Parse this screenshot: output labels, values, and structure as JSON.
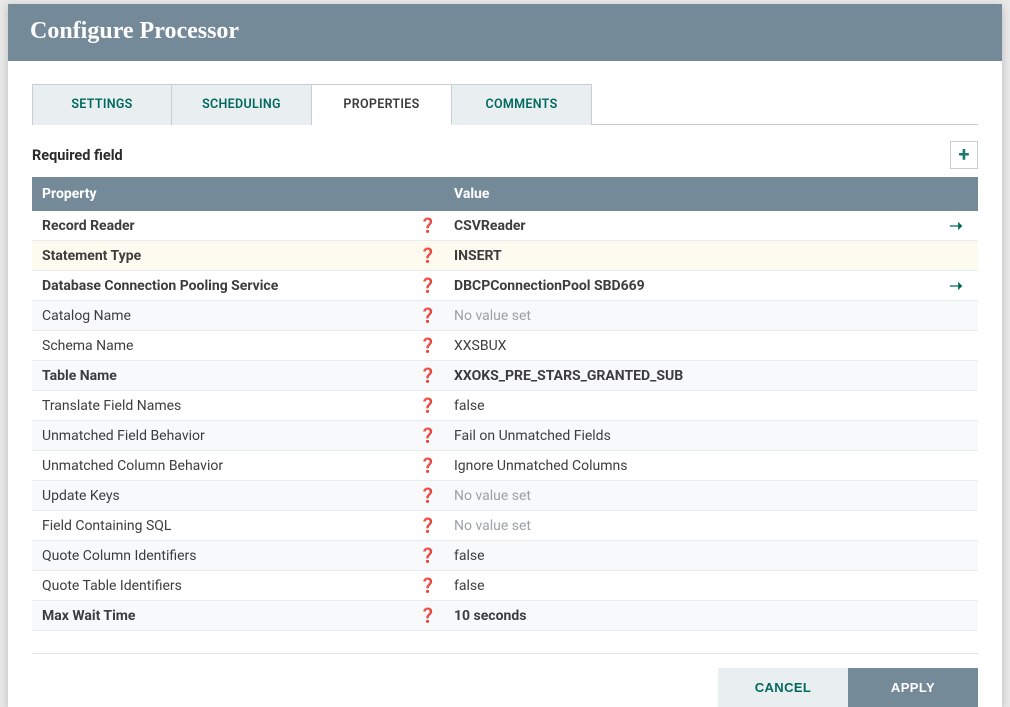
{
  "dialog": {
    "title": "Configure Processor"
  },
  "tabs": [
    {
      "label": "SETTINGS",
      "active": false
    },
    {
      "label": "SCHEDULING",
      "active": false
    },
    {
      "label": "PROPERTIES",
      "active": true
    },
    {
      "label": "COMMENTS",
      "active": false
    }
  ],
  "required_label": "Required field",
  "add_icon": "+",
  "table": {
    "header": {
      "property": "Property",
      "value": "Value"
    },
    "rows": [
      {
        "name": "Record Reader",
        "bold": true,
        "value": "CSVReader",
        "vbold": true,
        "goto": true,
        "highlight": false
      },
      {
        "name": "Statement Type",
        "bold": true,
        "value": "INSERT",
        "vbold": true,
        "goto": false,
        "highlight": true
      },
      {
        "name": "Database Connection Pooling Service",
        "bold": true,
        "value": "DBCPConnectionPool SBD669",
        "vbold": true,
        "goto": true,
        "highlight": false
      },
      {
        "name": "Catalog Name",
        "bold": false,
        "value": "No value set",
        "novalue": true,
        "goto": false,
        "highlight": false
      },
      {
        "name": "Schema Name",
        "bold": false,
        "value": "XXSBUX",
        "goto": false,
        "highlight": false
      },
      {
        "name": "Table Name",
        "bold": true,
        "value": "XXOKS_PRE_STARS_GRANTED_SUB",
        "vbold": true,
        "goto": false,
        "highlight": false
      },
      {
        "name": "Translate Field Names",
        "bold": false,
        "value": "false",
        "goto": false,
        "highlight": false
      },
      {
        "name": "Unmatched Field Behavior",
        "bold": false,
        "value": "Fail on Unmatched Fields",
        "goto": false,
        "highlight": false
      },
      {
        "name": "Unmatched Column Behavior",
        "bold": false,
        "value": "Ignore Unmatched Columns",
        "goto": false,
        "highlight": false
      },
      {
        "name": "Update Keys",
        "bold": false,
        "value": "No value set",
        "novalue": true,
        "goto": false,
        "highlight": false
      },
      {
        "name": "Field Containing SQL",
        "bold": false,
        "value": "No value set",
        "novalue": true,
        "goto": false,
        "highlight": false
      },
      {
        "name": "Quote Column Identifiers",
        "bold": false,
        "value": "false",
        "goto": false,
        "highlight": false
      },
      {
        "name": "Quote Table Identifiers",
        "bold": false,
        "value": "false",
        "goto": false,
        "highlight": false
      },
      {
        "name": "Max Wait Time",
        "bold": true,
        "value": "10 seconds",
        "vbold": true,
        "goto": false,
        "highlight": false
      }
    ],
    "help_glyph": "❓",
    "goto_glyph": "➝"
  },
  "footer": {
    "cancel": "CANCEL",
    "apply": "APPLY"
  },
  "colors": {
    "header_bg": "#748a99",
    "accent": "#046b5c",
    "tab_inactive_bg": "#e9eef1",
    "highlight_row": "#fdfbef",
    "alt_row": "#f7f9fa",
    "novalue_text": "#9aa1a6"
  }
}
